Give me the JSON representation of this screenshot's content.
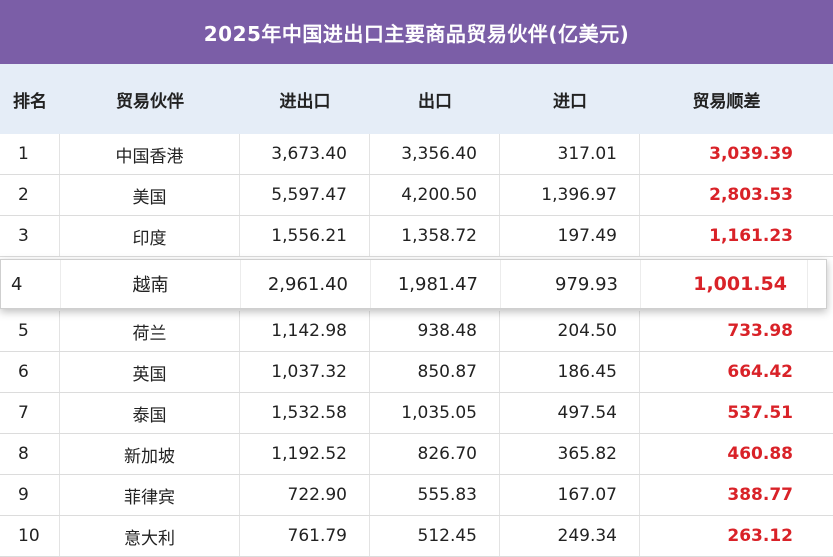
{
  "title": "2025年中国进出口主要商品贸易伙伴(亿美元)",
  "colors": {
    "title_bg": "#7b5ea7",
    "header_bg": "#e5edf7",
    "balance_text": "#d92228"
  },
  "table": {
    "headers": [
      "排名",
      "贸易伙伴",
      "进出口",
      "出口",
      "进口",
      "贸易顺差"
    ],
    "rows": [
      [
        "1",
        "中国香港",
        "3,673.40",
        "3,356.40",
        "317.01",
        "3,039.39"
      ],
      [
        "2",
        "美国",
        "5,597.47",
        "4,200.50",
        "1,396.97",
        "2,803.53"
      ],
      [
        "3",
        "印度",
        "1,556.21",
        "1,358.72",
        "197.49",
        "1,161.23"
      ],
      [
        "4",
        "越南",
        "2,961.40",
        "1,981.47",
        "979.93",
        "1,001.54"
      ],
      [
        "5",
        "荷兰",
        "1,142.98",
        "938.48",
        "204.50",
        "733.98"
      ],
      [
        "6",
        "英国",
        "1,037.32",
        "850.87",
        "186.45",
        "664.42"
      ],
      [
        "7",
        "泰国",
        "1,532.58",
        "1,035.05",
        "497.54",
        "537.51"
      ],
      [
        "8",
        "新加坡",
        "1,192.52",
        "826.70",
        "365.82",
        "460.88"
      ],
      [
        "9",
        "菲律宾",
        "722.90",
        "555.83",
        "167.07",
        "388.77"
      ],
      [
        "10",
        "意大利",
        "761.79",
        "512.45",
        "249.34",
        "263.12"
      ]
    ],
    "highlighted_row": 3
  }
}
